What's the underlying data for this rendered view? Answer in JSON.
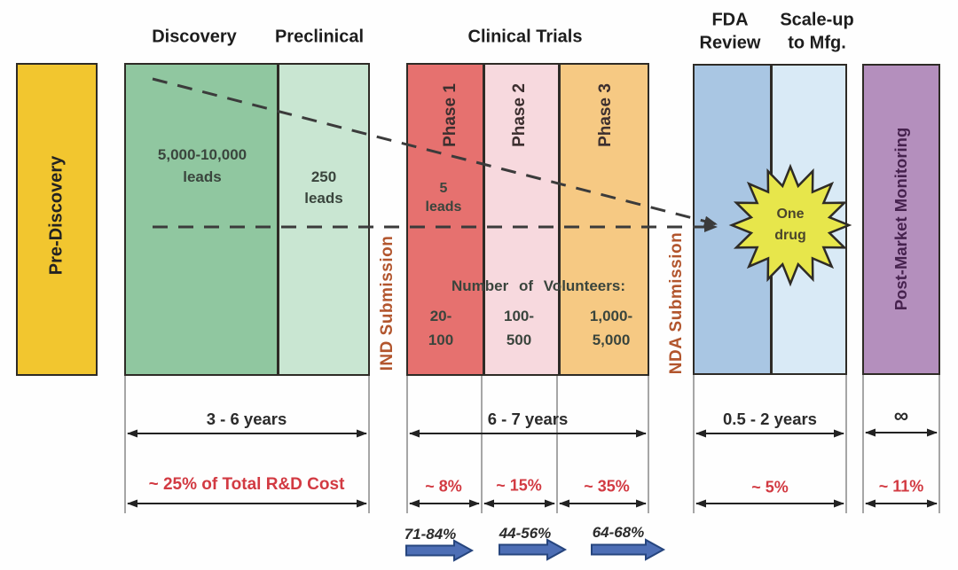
{
  "stages": {
    "pre_discovery": {
      "label": "Pre-Discovery"
    },
    "discovery": {
      "title": "Discovery",
      "leads_line1": "5,000-10,000",
      "leads_line2": "leads"
    },
    "preclinical": {
      "title": "Preclinical",
      "leads_line1": "250",
      "leads_line2": "leads"
    },
    "ind_submission": {
      "label": "IND Submission"
    },
    "clinical_trials": {
      "title": "Clinical Trials",
      "volunteers_heading": "Number of Volunteers:",
      "phase1": {
        "name": "Phase 1",
        "leads_line1": "5",
        "leads_line2": "leads",
        "volunteers_line1": "20-",
        "volunteers_line2": "100"
      },
      "phase2": {
        "name": "Phase 2",
        "volunteers_line1": "100-",
        "volunteers_line2": "500"
      },
      "phase3": {
        "name": "Phase 3",
        "volunteers_line1": "1,000-",
        "volunteers_line2": "5,000"
      }
    },
    "nda_submission": {
      "label": "NDA Submission"
    },
    "fda_review": {
      "title_line1": "FDA",
      "title_line2": "Review"
    },
    "scale_up": {
      "title_line1": "Scale-up",
      "title_line2": "to Mfg."
    },
    "one_drug": {
      "line1": "One",
      "line2": "drug"
    },
    "post_market": {
      "label": "Post-Market Monitoring"
    }
  },
  "timeline": {
    "discovery_preclinical_duration": "3 - 6 years",
    "clinical_duration": "6 - 7 years",
    "fda_scaleup_duration": "0.5 - 2 years",
    "post_market_duration": "∞"
  },
  "costs": {
    "discovery_preclinical": "~ 25% of Total R&D Cost",
    "phase1": "~ 8%",
    "phase2": "~ 15%",
    "phase3": "~ 35%",
    "fda_scaleup": "~ 5%",
    "post_market": "~ 11%"
  },
  "success_rates": {
    "phase1": "71-84%",
    "phase2": "44-56%",
    "phase3": "64-68%"
  },
  "colors": {
    "pre_discovery_fill": "#f2c62f",
    "discovery_fill": "#90c7a0",
    "preclinical_fill": "#c9e6d2",
    "phase1_fill": "#e6716f",
    "phase2_fill": "#f7d9de",
    "phase3_fill": "#f6c983",
    "fda_fill": "#a9c6e3",
    "scaleup_fill": "#d9eaf6",
    "postmarket_fill": "#b48fbd",
    "star_fill": "#e7e64b",
    "submission_text": "#b2552d",
    "cost_text": "#d23a42",
    "rate_arrow_fill": "#4d6eb5"
  }
}
